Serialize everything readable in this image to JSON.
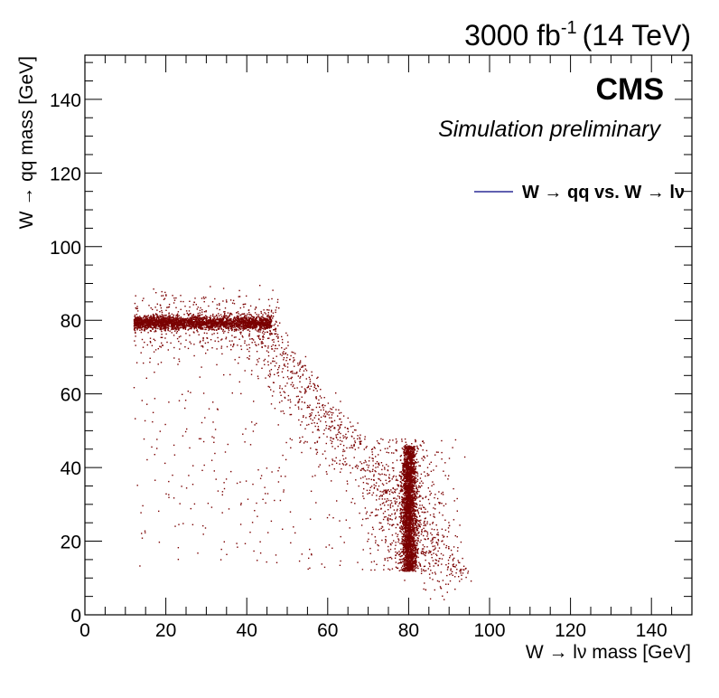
{
  "header": {
    "lumi": "3000 fb",
    "lumi_exp": "-1",
    "energy": "(14 TeV)"
  },
  "chart_data": {
    "type": "scatter",
    "title": "",
    "xlabel": "W → lν mass [GeV]",
    "ylabel": "W → qq mass [GeV]",
    "xlim": [
      0,
      150
    ],
    "ylim": [
      0,
      152
    ],
    "x_ticks": [
      "0",
      "20",
      "40",
      "60",
      "80",
      "100",
      "120",
      "140"
    ],
    "y_ticks": [
      "0",
      "20",
      "40",
      "60",
      "80",
      "100",
      "120",
      "140"
    ],
    "grid": false,
    "legend_position": "upper-right",
    "marker_color": "#7a0000",
    "legend_line_color": "#000080",
    "cms_label": "CMS",
    "sub_label": "Simulation preliminary",
    "series": [
      {
        "name": "W → qq vs. W → lν",
        "features": [
          {
            "kind": "horizontal band",
            "x_range": [
              12,
              46
            ],
            "y_center": 79.5,
            "y_spread": 1.5
          },
          {
            "kind": "vertical band",
            "x_center": 80,
            "x_spread": 1.5,
            "y_range": [
              12,
              46
            ]
          },
          {
            "kind": "diagonal edge",
            "from": [
              46,
              79
            ],
            "to": [
              95,
              12
            ]
          },
          {
            "kind": "diffuse interior",
            "x_range": [
              12,
              95
            ],
            "y_range": [
              12,
              95
            ]
          }
        ]
      }
    ]
  }
}
